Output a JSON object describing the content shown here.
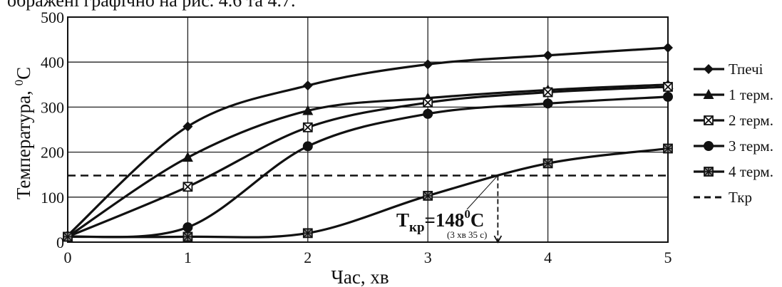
{
  "header_fragment": "ображені графічно на рис. 4.6 та 4.7.",
  "chart_data": {
    "type": "line",
    "title": "",
    "xlabel": "Час, хв",
    "ylabel_main": "Температура, ",
    "ylabel_sup": "0",
    "ylabel_unit": "С",
    "xlim": [
      0,
      5
    ],
    "ylim": [
      0,
      500
    ],
    "xticks": [
      0,
      1,
      2,
      3,
      4,
      5
    ],
    "yticks": [
      0,
      100,
      200,
      300,
      400,
      500
    ],
    "grid": true,
    "legend_position": "right",
    "series": [
      {
        "name": "Тпечі",
        "marker": "diamond",
        "x": [
          0,
          1,
          2,
          3,
          4,
          5
        ],
        "y": [
          15,
          257,
          348,
          395,
          415,
          432
        ]
      },
      {
        "name": "1 терм.",
        "marker": "triangle",
        "x": [
          0,
          1,
          2,
          3,
          4,
          5
        ],
        "y": [
          12,
          188,
          292,
          320,
          338,
          350
        ]
      },
      {
        "name": "2 терм.",
        "marker": "xsquare",
        "x": [
          0,
          1,
          2,
          3,
          4,
          5
        ],
        "y": [
          12,
          123,
          255,
          310,
          333,
          345
        ]
      },
      {
        "name": "3 терм.",
        "marker": "circle",
        "x": [
          0,
          1,
          2,
          3,
          4,
          5
        ],
        "y": [
          12,
          33,
          213,
          285,
          308,
          323
        ]
      },
      {
        "name": "4 терм.",
        "marker": "xsquare-hatched",
        "x": [
          0,
          1,
          2,
          3,
          4,
          5
        ],
        "y": [
          12,
          12,
          20,
          103,
          175,
          208
        ]
      }
    ],
    "threshold": {
      "name": "Ткр",
      "y": 148,
      "style": "dashed"
    },
    "annotation": {
      "main_prefix": "Т",
      "main_sub": "кр",
      "main_value": "=148",
      "main_sup": "0",
      "main_unit": "С",
      "note": "(3 хв 35 с)",
      "x": 3.583,
      "y": 148
    }
  }
}
